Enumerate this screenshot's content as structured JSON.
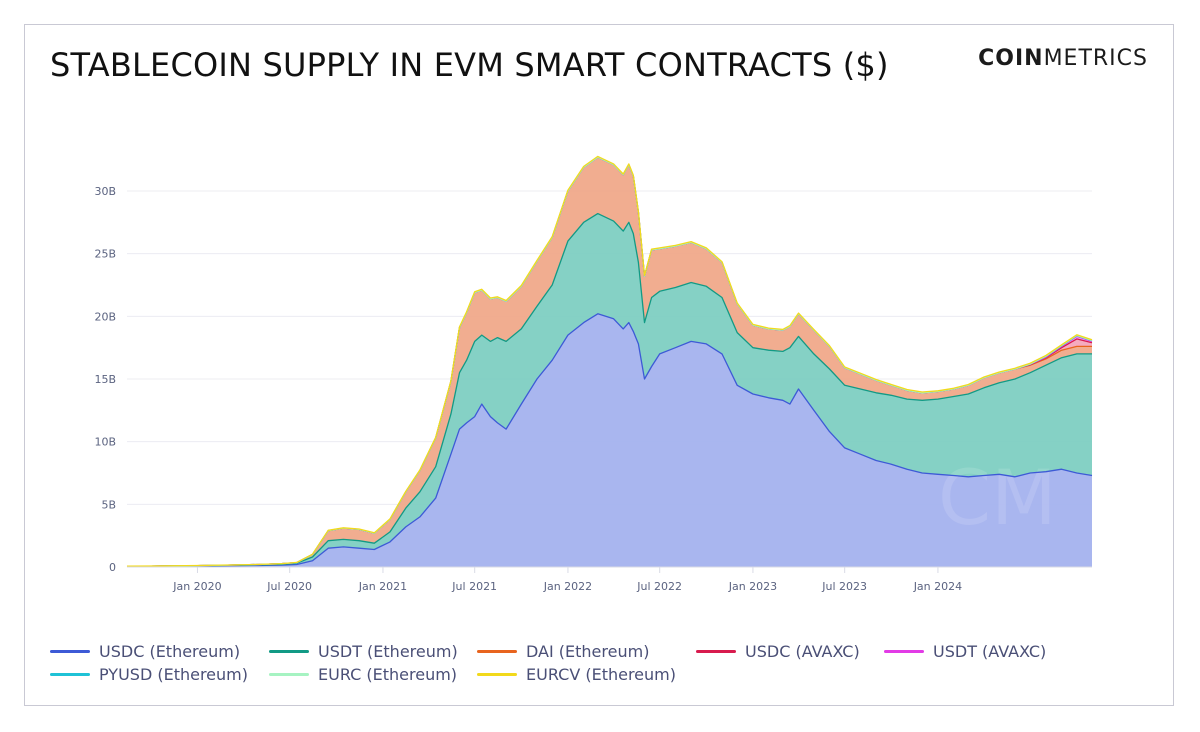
{
  "header": {
    "title": "STABLECOIN SUPPLY IN EVM SMART CONTRACTS ($)",
    "brand_bold": "COIN",
    "brand_light": "METRICS"
  },
  "watermark": "CM",
  "chart_data": {
    "type": "area",
    "stacked": true,
    "title": "STABLECOIN SUPPLY IN EVM SMART CONTRACTS ($)",
    "xlabel": "",
    "ylabel": "",
    "ylim": [
      0,
      32000000000
    ],
    "xlim": [
      "2019-08-15",
      "2024-10-31"
    ],
    "y_ticks": [
      {
        "value": 0,
        "label": "0"
      },
      {
        "value": 5000000000,
        "label": "5B"
      },
      {
        "value": 10000000000,
        "label": "10B"
      },
      {
        "value": 15000000000,
        "label": "15B"
      },
      {
        "value": 20000000000,
        "label": "20B"
      },
      {
        "value": 25000000000,
        "label": "25B"
      },
      {
        "value": 30000000000,
        "label": "30B"
      }
    ],
    "x_ticks": [
      {
        "value": "2020-01-01",
        "label": "Jan 2020"
      },
      {
        "value": "2020-07-01",
        "label": "Jul 2020"
      },
      {
        "value": "2021-01-01",
        "label": "Jan 2021"
      },
      {
        "value": "2021-07-01",
        "label": "Jul 2021"
      },
      {
        "value": "2022-01-01",
        "label": "Jan 2022"
      },
      {
        "value": "2022-07-01",
        "label": "Jul 2022"
      },
      {
        "value": "2023-01-01",
        "label": "Jan 2023"
      },
      {
        "value": "2023-07-01",
        "label": "Jul 2023"
      },
      {
        "value": "2024-01-01",
        "label": "Jan 2024"
      }
    ],
    "grid": true,
    "legend_position": "bottom",
    "x": [
      "2019-08-15",
      "2019-10-01",
      "2020-01-01",
      "2020-03-01",
      "2020-05-01",
      "2020-06-15",
      "2020-07-15",
      "2020-08-15",
      "2020-09-15",
      "2020-10-15",
      "2020-11-15",
      "2020-12-15",
      "2021-01-15",
      "2021-02-15",
      "2021-03-15",
      "2021-04-15",
      "2021-05-15",
      "2021-06-01",
      "2021-06-15",
      "2021-07-01",
      "2021-07-15",
      "2021-08-01",
      "2021-08-15",
      "2021-09-01",
      "2021-10-01",
      "2021-11-01",
      "2021-12-01",
      "2022-01-01",
      "2022-02-01",
      "2022-03-01",
      "2022-04-01",
      "2022-04-20",
      "2022-05-01",
      "2022-05-10",
      "2022-05-20",
      "2022-06-01",
      "2022-06-15",
      "2022-07-01",
      "2022-08-01",
      "2022-09-01",
      "2022-10-01",
      "2022-11-01",
      "2022-12-01",
      "2023-01-01",
      "2023-02-01",
      "2023-03-01",
      "2023-03-15",
      "2023-04-01",
      "2023-05-01",
      "2023-06-01",
      "2023-07-01",
      "2023-08-01",
      "2023-09-01",
      "2023-10-01",
      "2023-11-01",
      "2023-12-01",
      "2024-01-01",
      "2024-02-01",
      "2024-03-01",
      "2024-04-01",
      "2024-05-01",
      "2024-06-01",
      "2024-07-01",
      "2024-08-01",
      "2024-09-01",
      "2024-10-01",
      "2024-10-31"
    ],
    "series": [
      {
        "name": "USDC (Ethereum)",
        "color": "#3d5ad6",
        "fill": "#a4b2ee",
        "values": [
          0.05,
          0.06,
          0.08,
          0.1,
          0.12,
          0.15,
          0.2,
          0.5,
          1.5,
          1.6,
          1.5,
          1.4,
          2.0,
          3.2,
          4.0,
          5.5,
          9.0,
          11.0,
          11.5,
          12.0,
          13.0,
          12.0,
          11.5,
          11.0,
          13.0,
          15.0,
          16.5,
          18.5,
          19.5,
          20.2,
          19.8,
          19.0,
          19.5,
          18.8,
          17.8,
          15.0,
          16.0,
          17.0,
          17.5,
          18.0,
          17.8,
          17.0,
          14.5,
          13.8,
          13.5,
          13.3,
          13.0,
          14.2,
          12.5,
          10.8,
          9.5,
          9.0,
          8.5,
          8.2,
          7.8,
          7.5,
          7.4,
          7.3,
          7.2,
          7.3,
          7.4,
          7.2,
          7.5,
          7.6,
          7.8,
          7.5,
          7.3
        ]
      },
      {
        "name": "USDT (Ethereum)",
        "color": "#129a85",
        "fill": "#7ecfc2",
        "values": [
          0.01,
          0.01,
          0.02,
          0.03,
          0.05,
          0.06,
          0.1,
          0.3,
          0.6,
          0.6,
          0.6,
          0.5,
          0.8,
          1.5,
          2.0,
          2.5,
          3.2,
          4.5,
          5.0,
          6.0,
          5.5,
          6.0,
          6.8,
          7.0,
          6.0,
          5.8,
          6.0,
          7.5,
          8.0,
          8.0,
          7.8,
          7.8,
          8.0,
          7.8,
          6.5,
          4.5,
          5.5,
          5.0,
          4.8,
          4.7,
          4.6,
          4.5,
          4.2,
          3.7,
          3.8,
          3.9,
          4.5,
          4.2,
          4.5,
          5.0,
          5.0,
          5.2,
          5.4,
          5.5,
          5.6,
          5.8,
          6.0,
          6.3,
          6.6,
          7.0,
          7.3,
          7.8,
          8.0,
          8.5,
          8.9,
          9.5,
          9.7
        ]
      },
      {
        "name": "DAI (Ethereum)",
        "color": "#e8641e",
        "fill": "#f0a98a",
        "values": [
          0.0,
          0.0,
          0.01,
          0.02,
          0.03,
          0.05,
          0.05,
          0.2,
          0.8,
          0.9,
          0.9,
          0.8,
          1.0,
          1.3,
          1.7,
          2.3,
          2.6,
          3.6,
          3.8,
          3.9,
          3.6,
          3.4,
          3.2,
          3.2,
          3.4,
          3.6,
          3.8,
          4.0,
          4.4,
          4.5,
          4.5,
          4.5,
          4.6,
          4.6,
          4.0,
          3.7,
          3.8,
          3.4,
          3.3,
          3.2,
          3.0,
          2.8,
          2.3,
          1.8,
          1.7,
          1.7,
          1.7,
          1.8,
          1.9,
          1.8,
          1.4,
          1.2,
          1.0,
          0.8,
          0.7,
          0.6,
          0.6,
          0.6,
          0.7,
          0.8,
          0.8,
          0.8,
          0.6,
          0.5,
          0.6,
          0.6,
          0.6
        ]
      },
      {
        "name": "USDC (AVAXC)",
        "color": "#d81b4e",
        "fill": "#f4a7bd",
        "values": [
          0,
          0,
          0,
          0,
          0,
          0,
          0,
          0,
          0,
          0,
          0,
          0,
          0,
          0,
          0,
          0,
          0,
          0,
          0,
          0,
          0,
          0,
          0,
          0,
          0,
          0,
          0,
          0,
          0,
          0,
          0,
          0,
          0,
          0,
          0,
          0,
          0,
          0,
          0,
          0,
          0,
          0,
          0,
          0,
          0,
          0,
          0,
          0,
          0,
          0,
          0,
          0,
          0,
          0,
          0,
          0,
          0,
          0,
          0,
          0,
          0,
          0,
          0.05,
          0.1,
          0.2,
          0.6,
          0.3
        ]
      },
      {
        "name": "USDT (AVAXC)",
        "color": "#e23be6",
        "fill": "#f2a6f3",
        "values": [
          0,
          0,
          0,
          0,
          0,
          0,
          0,
          0,
          0,
          0,
          0,
          0,
          0,
          0,
          0,
          0,
          0,
          0,
          0,
          0,
          0,
          0,
          0,
          0,
          0,
          0,
          0,
          0,
          0,
          0,
          0,
          0,
          0,
          0,
          0,
          0,
          0,
          0,
          0,
          0,
          0,
          0,
          0,
          0,
          0,
          0,
          0,
          0,
          0,
          0,
          0,
          0,
          0,
          0,
          0,
          0,
          0,
          0,
          0,
          0,
          0,
          0,
          0.02,
          0.05,
          0.1,
          0.2,
          0.1
        ]
      },
      {
        "name": "PYUSD (Ethereum)",
        "color": "#1fc2d6",
        "fill": "#9fe4ec",
        "values": [
          0,
          0,
          0,
          0,
          0,
          0,
          0,
          0,
          0,
          0,
          0,
          0,
          0,
          0,
          0,
          0,
          0,
          0,
          0,
          0,
          0,
          0,
          0,
          0,
          0,
          0,
          0,
          0,
          0,
          0,
          0,
          0,
          0,
          0,
          0,
          0,
          0,
          0,
          0,
          0,
          0,
          0,
          0,
          0,
          0,
          0,
          0,
          0,
          0,
          0,
          0,
          0,
          0,
          0,
          0,
          0,
          0,
          0,
          0,
          0,
          0,
          0,
          0.02,
          0.05,
          0.05,
          0.05,
          0.05
        ]
      },
      {
        "name": "EURC (Ethereum)",
        "color": "#a6f3c2",
        "fill": "#cff7de",
        "values": [
          0,
          0,
          0,
          0,
          0,
          0,
          0,
          0,
          0,
          0,
          0,
          0,
          0,
          0,
          0,
          0,
          0,
          0,
          0,
          0,
          0,
          0,
          0,
          0,
          0,
          0,
          0,
          0,
          0,
          0,
          0,
          0,
          0,
          0,
          0,
          0,
          0,
          0,
          0,
          0,
          0,
          0,
          0,
          0,
          0,
          0,
          0,
          0,
          0,
          0,
          0,
          0,
          0,
          0,
          0,
          0,
          0,
          0,
          0,
          0,
          0,
          0,
          0.01,
          0.02,
          0.02,
          0.02,
          0.02
        ]
      },
      {
        "name": "EURCV (Ethereum)",
        "color": "#f2d91b",
        "fill": "#f8e97a",
        "values": [
          0.01,
          0.01,
          0.01,
          0.01,
          0.01,
          0.01,
          0.02,
          0.02,
          0.03,
          0.03,
          0.03,
          0.03,
          0.04,
          0.04,
          0.04,
          0.05,
          0.06,
          0.06,
          0.06,
          0.06,
          0.06,
          0.06,
          0.06,
          0.06,
          0.06,
          0.06,
          0.06,
          0.06,
          0.06,
          0.06,
          0.06,
          0.06,
          0.06,
          0.06,
          0.06,
          0.06,
          0.06,
          0.06,
          0.06,
          0.06,
          0.06,
          0.06,
          0.06,
          0.06,
          0.06,
          0.06,
          0.06,
          0.06,
          0.06,
          0.06,
          0.06,
          0.06,
          0.06,
          0.06,
          0.06,
          0.06,
          0.06,
          0.06,
          0.06,
          0.06,
          0.06,
          0.06,
          0.06,
          0.06,
          0.06,
          0.06,
          0.06
        ]
      }
    ],
    "value_unit_multiplier": 1000000000
  }
}
